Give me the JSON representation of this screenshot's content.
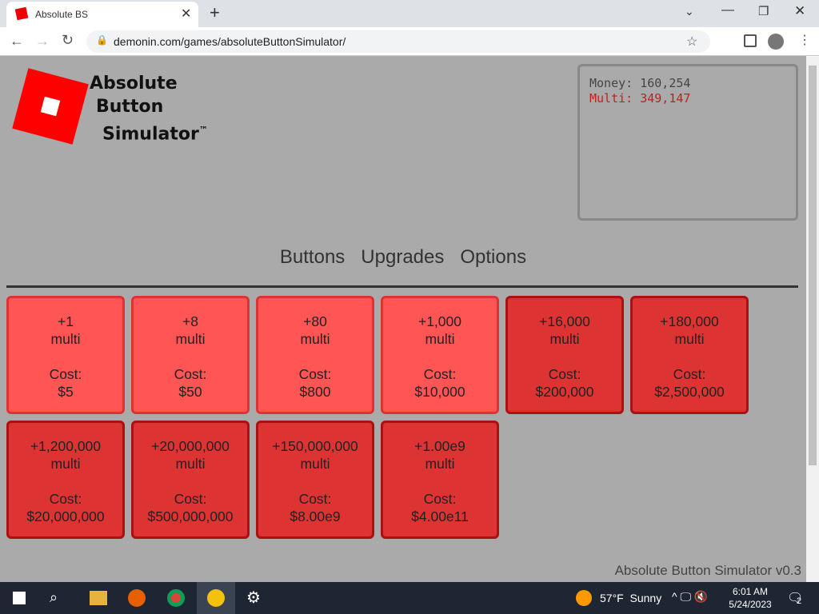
{
  "browser": {
    "tab_title": "Absolute BS",
    "url": "demonin.com/games/absoluteButtonSimulator/"
  },
  "logo": {
    "lines": [
      "Absolute",
      "Button",
      "Simulator"
    ],
    "tm": "™"
  },
  "stats": {
    "money": "Money: 160,254",
    "multi": "Multi: 349,147"
  },
  "nav": [
    "Buttons",
    "Upgrades",
    "Options"
  ],
  "button_unit": "multi",
  "cost_label": "Cost:",
  "buttons": [
    {
      "gain": "+1",
      "cost": "$5",
      "affordable": true
    },
    {
      "gain": "+8",
      "cost": "$50",
      "affordable": true
    },
    {
      "gain": "+80",
      "cost": "$800",
      "affordable": true
    },
    {
      "gain": "+1,000",
      "cost": "$10,000",
      "affordable": true
    },
    {
      "gain": "+16,000",
      "cost": "$200,000",
      "affordable": false
    },
    {
      "gain": "+180,000",
      "cost": "$2,500,000",
      "affordable": false
    },
    {
      "gain": "+1,200,000",
      "cost": "$20,000,000",
      "affordable": false
    },
    {
      "gain": "+20,000,000",
      "cost": "$500,000,000",
      "affordable": false
    },
    {
      "gain": "+150,000,000",
      "cost": "$8.00e9",
      "affordable": false
    },
    {
      "gain": "+1.00e9",
      "cost": "$4.00e11",
      "affordable": false
    }
  ],
  "footer": "Absolute Button Simulator v0.3",
  "taskbar": {
    "weather": "57°F  Sunny",
    "time": "6:01 AM",
    "date": "5/24/2023",
    "notifications": "2"
  }
}
